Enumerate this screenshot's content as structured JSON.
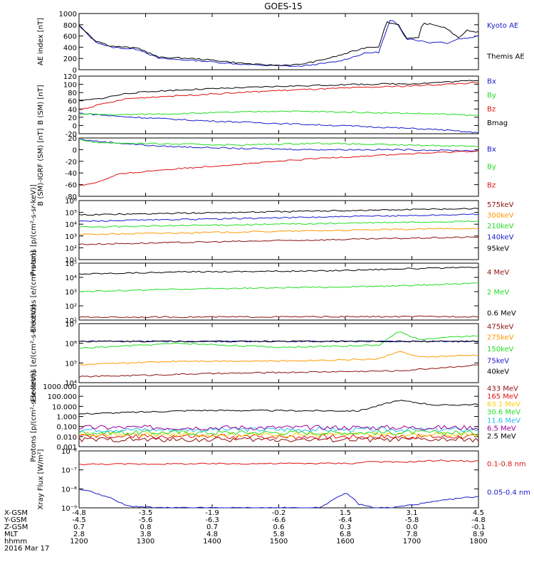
{
  "title": "GOES-15",
  "chart_data": [
    {
      "id": "ae",
      "type": "line",
      "ylabel": "AE index [nT]",
      "ylim": [
        0,
        1000
      ],
      "ticks": [
        "0",
        "200",
        "400",
        "600",
        "800",
        "1000"
      ],
      "series": [
        {
          "name": "Kyoto AE",
          "color": "#1a1acc",
          "label_y": 0.2,
          "x": [
            0,
            0.04,
            0.08,
            0.15,
            0.2,
            0.25,
            0.3,
            0.35,
            0.4,
            0.45,
            0.5,
            0.55,
            0.6,
            0.65,
            0.72,
            0.75,
            0.78,
            0.8,
            0.82,
            0.83,
            0.85,
            0.88,
            0.9,
            0.92,
            0.95,
            0.97,
            1.0
          ],
          "y": [
            780,
            500,
            400,
            360,
            200,
            180,
            160,
            130,
            100,
            80,
            70,
            60,
            100,
            150,
            300,
            310,
            900,
            780,
            550,
            550,
            520,
            480,
            500,
            470,
            550,
            560,
            600
          ]
        },
        {
          "name": "Themis AE",
          "color": "#000000",
          "label_y": 0.75,
          "x": [
            0,
            0.04,
            0.08,
            0.15,
            0.2,
            0.25,
            0.3,
            0.35,
            0.4,
            0.45,
            0.5,
            0.55,
            0.6,
            0.65,
            0.72,
            0.75,
            0.77,
            0.8,
            0.82,
            0.85,
            0.86,
            0.9,
            0.92,
            0.95,
            0.97,
            1.0
          ],
          "y": [
            800,
            520,
            420,
            380,
            220,
            210,
            190,
            160,
            120,
            90,
            80,
            90,
            160,
            250,
            400,
            410,
            850,
            800,
            560,
            560,
            830,
            780,
            740,
            560,
            700,
            670
          ]
        }
      ]
    },
    {
      "id": "bsm",
      "type": "line",
      "ylabel": "B (SM) [nT]",
      "ylim": [
        -20,
        120
      ],
      "ticks": [
        "-20",
        "0",
        "20",
        "40",
        "60",
        "80",
        "100",
        "120"
      ],
      "series": [
        {
          "name": "Bx",
          "color": "#1a1acc",
          "label_y": 0.08,
          "x": [
            0,
            0.1,
            0.3,
            0.5,
            0.7,
            0.9,
            1.0
          ],
          "y": [
            30,
            22,
            12,
            5,
            -2,
            -10,
            -18
          ]
        },
        {
          "name": "By",
          "color": "#22dd22",
          "label_y": 0.32,
          "x": [
            0,
            0.1,
            0.3,
            0.5,
            0.7,
            0.9,
            1.0
          ],
          "y": [
            28,
            26,
            30,
            35,
            32,
            28,
            24
          ]
        },
        {
          "name": "Bz",
          "color": "#dd1111",
          "label_y": 0.56,
          "x": [
            0,
            0.05,
            0.12,
            0.2,
            0.3,
            0.5,
            0.7,
            0.85,
            1.0
          ],
          "y": [
            38,
            50,
            65,
            70,
            75,
            85,
            92,
            97,
            104
          ]
        },
        {
          "name": "Bmag",
          "color": "#000000",
          "label_y": 0.8,
          "x": [
            0,
            0.05,
            0.12,
            0.2,
            0.3,
            0.5,
            0.7,
            0.85,
            1.0
          ],
          "y": [
            60,
            65,
            78,
            84,
            88,
            95,
            100,
            102,
            110
          ]
        }
      ]
    },
    {
      "id": "bigrf",
      "type": "line",
      "ylabel": "B (SM)-IGRF (SM) [nT]",
      "ylim": [
        -80,
        20
      ],
      "ticks": [
        "-80",
        "-60",
        "-40",
        "-20",
        "0",
        "20"
      ],
      "series": [
        {
          "name": "Bx",
          "color": "#1a1acc",
          "label_y": 0.18,
          "x": [
            0,
            0.05,
            0.2,
            0.4,
            0.6,
            0.8,
            1.0
          ],
          "y": [
            18,
            14,
            6,
            2,
            0,
            0,
            -2
          ]
        },
        {
          "name": "By",
          "color": "#22dd22",
          "label_y": 0.48,
          "x": [
            0,
            0.05,
            0.2,
            0.4,
            0.6,
            0.8,
            1.0
          ],
          "y": [
            17,
            12,
            10,
            8,
            11,
            8,
            6
          ]
        },
        {
          "name": "Bz",
          "color": "#dd1111",
          "label_y": 0.8,
          "x": [
            0,
            0.05,
            0.1,
            0.2,
            0.4,
            0.6,
            0.8,
            1.0
          ],
          "y": [
            -62,
            -55,
            -42,
            -35,
            -25,
            -15,
            -8,
            -2
          ]
        }
      ]
    },
    {
      "id": "protons1",
      "type": "line",
      "ylabel": "Protons [p/(cm²-s-sr-keV)]",
      "ylim": [
        0,
        6
      ],
      "ylog": true,
      "ticks": [
        "10¹",
        "10²",
        "10³",
        "10⁴",
        "10⁵",
        "10⁶"
      ],
      "series": [
        {
          "name": "575keV",
          "color": "#8b1010",
          "label_y": 0.06,
          "x": [
            0,
            1
          ],
          "y": [
            1.55,
            2.3
          ]
        },
        {
          "name": "300keV",
          "color": "#ff9900",
          "label_y": 0.24,
          "x": [
            0,
            1
          ],
          "y": [
            2.55,
            3.2
          ]
        },
        {
          "name": "210keV",
          "color": "#22dd22",
          "label_y": 0.42,
          "x": [
            0,
            1
          ],
          "y": [
            3.3,
            3.9
          ]
        },
        {
          "name": "140keV",
          "color": "#1a1acc",
          "label_y": 0.61,
          "x": [
            0,
            1
          ],
          "y": [
            3.9,
            4.6
          ]
        },
        {
          "name": "95keV",
          "color": "#000000",
          "label_y": 0.8,
          "x": [
            0,
            1
          ],
          "y": [
            4.55,
            5.2
          ]
        }
      ]
    },
    {
      "id": "electrons1",
      "type": "line",
      "ylabel": "Electrons [e/(cm²-s-sr)]",
      "ylim": [
        1,
        5
      ],
      "ylog": true,
      "ticks": [
        "10¹",
        "10²",
        "10³",
        "10⁴",
        "10⁵"
      ],
      "series": [
        {
          "name": "4 MeV",
          "color": "#8b1010",
          "label_y": 0.15,
          "x": [
            0,
            1
          ],
          "y": [
            1.2,
            1.25
          ]
        },
        {
          "name": "2 MeV",
          "color": "#22dd22",
          "label_y": 0.5,
          "x": [
            0,
            0.3,
            0.6,
            0.8,
            1.0
          ],
          "y": [
            3.0,
            3.2,
            3.3,
            3.4,
            3.6
          ]
        },
        {
          "name": "0.6 MeV",
          "color": "#000000",
          "label_y": 0.87,
          "x": [
            0,
            0.3,
            0.6,
            0.8,
            1.0
          ],
          "y": [
            4.25,
            4.4,
            4.45,
            4.6,
            4.7
          ]
        }
      ]
    },
    {
      "id": "electrons2",
      "type": "line",
      "ylabel": "Electrons [e/(cm²-s-sr-keV)]",
      "ylim": [
        4,
        7
      ],
      "ylog": true,
      "ticks": [
        "10⁴",
        "10⁵",
        "10⁶",
        "10⁷"
      ],
      "series": [
        {
          "name": "475keV",
          "color": "#8b1010",
          "label_y": 0.04,
          "x": [
            0,
            0.3,
            0.6,
            0.8,
            1.0
          ],
          "y": [
            4.3,
            4.45,
            4.55,
            4.6,
            4.9
          ]
        },
        {
          "name": "275keV",
          "color": "#ff9900",
          "label_y": 0.22,
          "x": [
            0,
            0.25,
            0.5,
            0.75,
            0.8,
            0.85,
            1.0
          ],
          "y": [
            4.9,
            5.1,
            5.1,
            5.2,
            5.6,
            5.3,
            5.4
          ]
        },
        {
          "name": "150keV",
          "color": "#22dd22",
          "label_y": 0.42,
          "x": [
            0,
            0.25,
            0.5,
            0.75,
            0.8,
            0.85,
            1.0
          ],
          "y": [
            5.75,
            6.0,
            5.8,
            5.9,
            6.6,
            6.2,
            6.4
          ]
        },
        {
          "name": "75keV",
          "color": "#1a1acc",
          "label_y": 0.62,
          "x": [
            0,
            1
          ],
          "y": [
            6.1,
            6.1
          ]
        },
        {
          "name": "40keV",
          "color": "#000000",
          "label_y": 0.8,
          "x": [
            0,
            1
          ],
          "y": [
            6.1,
            6.1
          ]
        }
      ]
    },
    {
      "id": "protons2",
      "type": "line",
      "ylabel": "Protons [p/(cm²-s-sr-keV)]",
      "ylim": [
        -3,
        3
      ],
      "ylog": true,
      "ticks": [
        "0.001",
        "0.010",
        "0.100",
        "1.000",
        "10.000",
        "100.000",
        "1000.000"
      ],
      "series": [
        {
          "name": "433 MeV",
          "color": "#8b1010",
          "label_y": 0.03,
          "x": [
            0,
            1
          ],
          "y": [
            -2.3,
            -2.3
          ]
        },
        {
          "name": "165 MeV",
          "color": "#dd1111",
          "label_y": 0.16,
          "x": [
            0,
            1
          ],
          "y": [
            -2.0,
            -2.0
          ]
        },
        {
          "name": "63.1 MeV",
          "color": "#ffcc00",
          "label_y": 0.29,
          "x": [
            0,
            1
          ],
          "y": [
            -1.8,
            -1.8
          ]
        },
        {
          "name": "30.6 MeV",
          "color": "#22dd22",
          "label_y": 0.42,
          "x": [
            0,
            1
          ],
          "y": [
            -1.6,
            -1.6
          ]
        },
        {
          "name": "11.6 MeV",
          "color": "#22bbee",
          "label_y": 0.56,
          "x": [
            0,
            1
          ],
          "y": [
            -1.3,
            -1.3
          ]
        },
        {
          "name": "6.5 MeV",
          "color": "#990099",
          "label_y": 0.69,
          "x": [
            0,
            1
          ],
          "y": [
            -1.1,
            -1.1
          ]
        },
        {
          "name": "2.5 MeV",
          "color": "#000000",
          "label_y": 0.82,
          "x": [
            0,
            0.3,
            0.7,
            0.8,
            0.9,
            1.0
          ],
          "y": [
            0.25,
            0.6,
            0.55,
            1.6,
            1.1,
            1.2
          ]
        }
      ]
    },
    {
      "id": "xray",
      "type": "line",
      "ylabel": "Xray Flux [W/m²]",
      "ylim": [
        -9,
        -6
      ],
      "ylog": true,
      "ticks": [
        "10⁻⁹",
        "10⁻⁸",
        "10⁻⁷",
        "10⁻⁶"
      ],
      "series": [
        {
          "name": "0.1-0.8 nm",
          "color": "#dd1111",
          "label_y": 0.22,
          "x": [
            0,
            0.7,
            0.72,
            0.8,
            0.9,
            1.0
          ],
          "y": [
            -6.7,
            -6.65,
            -6.55,
            -6.6,
            -6.5,
            -6.55
          ]
        },
        {
          "name": "0.05-0.4 nm",
          "color": "#1a1acc",
          "label_y": 0.72,
          "x": [
            0,
            0.04,
            0.08,
            0.12,
            0.2,
            0.6,
            0.67,
            0.7,
            0.74,
            0.78,
            0.95,
            1.0
          ],
          "y": [
            -8.0,
            -8.2,
            -8.5,
            -8.9,
            -9.0,
            -9.0,
            -8.2,
            -8.8,
            -9.0,
            -9.0,
            -8.5,
            -8.4
          ]
        }
      ]
    }
  ],
  "xaxis": {
    "row_labels": [
      "X-GSM",
      "Y-GSM",
      "Z-GSM",
      "MLT",
      "hhmm",
      "2016 Mar 17"
    ],
    "columns": [
      {
        "values": [
          "-4.8",
          "-4.5",
          "0.7",
          "2.8",
          "1200"
        ]
      },
      {
        "values": [
          "-3.5",
          "-5.6",
          "0.8",
          "3.8",
          "1300"
        ]
      },
      {
        "values": [
          "-1.9",
          "-6.3",
          "0.7",
          "4.8",
          "1400"
        ]
      },
      {
        "values": [
          "-0.2",
          "-6.6",
          "0.6",
          "5.8",
          "1500"
        ]
      },
      {
        "values": [
          "1.5",
          "-6.4",
          "0.3",
          "6.8",
          "1600"
        ]
      },
      {
        "values": [
          "3.1",
          "-5.8",
          "0.0",
          "7.8",
          "1700"
        ]
      },
      {
        "values": [
          "4.5",
          "-4.8",
          "-0.1",
          "8.9",
          "1800"
        ]
      }
    ]
  }
}
